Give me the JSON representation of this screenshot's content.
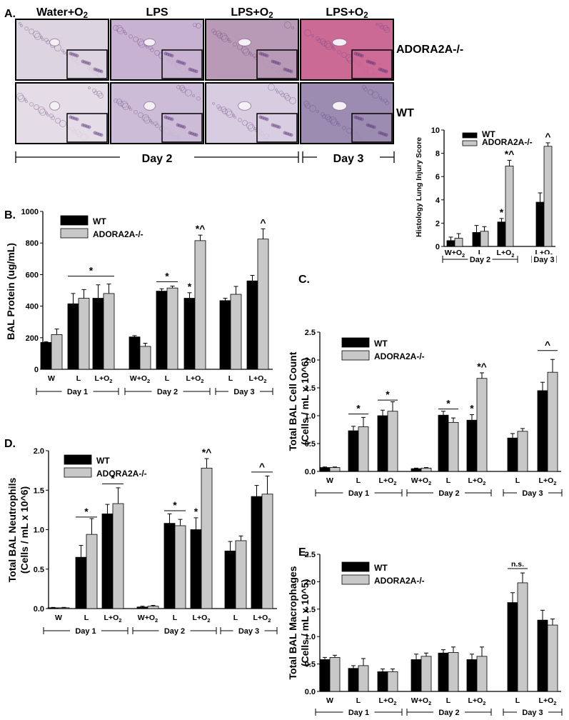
{
  "panel_a": {
    "label": "A.",
    "column_titles": [
      "Water+O2",
      "LPS",
      "LPS+O2",
      "LPS+O2"
    ],
    "row_labels": [
      "ADORA2A-/-",
      "WT"
    ],
    "day_labels": [
      "Day 2",
      "Day 3"
    ],
    "image_tones": [
      [
        "#dcd4e0",
        "#c8b2d2",
        "#b99ab6",
        "#cc6a96"
      ],
      [
        "#e4dce6",
        "#cdbcd8",
        "#d8cce0",
        "#9c8cb2"
      ]
    ]
  },
  "chart_data": [
    {
      "id": "inset",
      "type": "bar",
      "label": "",
      "ylabel": "Histology Lung Injury Score",
      "ylim": [
        0,
        10
      ],
      "yticks": [
        0,
        2,
        4,
        6,
        8,
        10
      ],
      "categories": [
        "W+O2",
        "L",
        "L+O2",
        "L+O2"
      ],
      "groups": [
        {
          "label": "Day 2",
          "from": 0,
          "to": 2
        },
        {
          "label": "Day 3",
          "from": 3,
          "to": 3
        }
      ],
      "legend": [
        "WT",
        "ADORA2A-/-"
      ],
      "series": [
        {
          "name": "WT",
          "values": [
            0.5,
            1.2,
            2.1,
            3.8
          ],
          "errors": [
            0.3,
            0.6,
            0.3,
            0.8
          ]
        },
        {
          "name": "ADORA2A-/-",
          "values": [
            0.7,
            1.3,
            6.9,
            8.6
          ],
          "errors": [
            0.4,
            0.4,
            0.5,
            0.3
          ]
        }
      ],
      "marks": [
        {
          "text": "*",
          "cat": 2,
          "series": 0
        },
        {
          "text": "*^",
          "cat": 2,
          "series": 1
        },
        {
          "text": "^",
          "cat": 3,
          "series": 1
        }
      ],
      "lines": []
    },
    {
      "id": "B",
      "type": "bar",
      "label": "B.",
      "ylabel": "BAL Protein (ug/mL)",
      "ylim": [
        0,
        1000
      ],
      "yticks": [
        0,
        200,
        400,
        600,
        800,
        1000
      ],
      "categories": [
        "W",
        "L",
        "L+O2",
        "W+O2",
        "L",
        "L+O2",
        "L",
        "L+O2"
      ],
      "groups": [
        {
          "label": "Day 1",
          "from": 0,
          "to": 2
        },
        {
          "label": "Day 2",
          "from": 3,
          "to": 5
        },
        {
          "label": "Day 3",
          "from": 6,
          "to": 7
        }
      ],
      "legend": [
        "WT",
        "ADORA2A-/-"
      ],
      "series": [
        {
          "name": "WT",
          "values": [
            170,
            415,
            450,
            205,
            495,
            450,
            435,
            560
          ],
          "errors": [
            5,
            65,
            85,
            8,
            15,
            35,
            15,
            35
          ]
        },
        {
          "name": "ADORA2A-/-",
          "values": [
            220,
            450,
            480,
            145,
            515,
            815,
            475,
            825
          ],
          "errors": [
            35,
            55,
            60,
            20,
            12,
            35,
            50,
            65
          ]
        }
      ],
      "marks": [
        {
          "text": "*",
          "cat": 5,
          "series": 0
        },
        {
          "text": "*^",
          "cat": 5,
          "series": 1
        },
        {
          "text": "^",
          "cat": 7,
          "series": 1
        }
      ],
      "lines": [
        {
          "from": 1,
          "to": 2,
          "y": 590,
          "text": "*"
        },
        {
          "from": 4,
          "to": 4,
          "y": 555,
          "text": "*"
        }
      ]
    },
    {
      "id": "C",
      "type": "bar",
      "label": "C.",
      "ylabel": "Total BAL Cell Count (Cells / mL x 10^6)",
      "ylim": [
        0,
        2.5
      ],
      "yticks": [
        0.0,
        0.5,
        1.0,
        1.5,
        2.0,
        2.5
      ],
      "categories": [
        "W",
        "L",
        "L+O2",
        "W+O2",
        "L",
        "L+O2",
        "L",
        "L+O2"
      ],
      "groups": [
        {
          "label": "Day 1",
          "from": 0,
          "to": 2
        },
        {
          "label": "Day 2",
          "from": 3,
          "to": 5
        },
        {
          "label": "Day 3",
          "from": 6,
          "to": 7
        }
      ],
      "legend": [
        "WT",
        "ADORA2A-/-"
      ],
      "series": [
        {
          "name": "WT",
          "values": [
            0.07,
            0.73,
            1.0,
            0.05,
            1.01,
            0.92,
            0.6,
            1.45
          ],
          "errors": [
            0.01,
            0.08,
            0.1,
            0.01,
            0.07,
            0.1,
            0.08,
            0.15
          ]
        },
        {
          "name": "ADORA2A-/-",
          "values": [
            0.07,
            0.8,
            1.08,
            0.06,
            0.88,
            1.67,
            0.72,
            1.78
          ],
          "errors": [
            0.01,
            0.17,
            0.17,
            0.01,
            0.08,
            0.1,
            0.05,
            0.23
          ]
        }
      ],
      "marks": [
        {
          "text": "*",
          "cat": 5,
          "series": 0
        },
        {
          "text": "*^",
          "cat": 5,
          "series": 1
        }
      ],
      "lines": [
        {
          "from": 1,
          "to": 1,
          "y": 1.03,
          "text": "*"
        },
        {
          "from": 2,
          "to": 2,
          "y": 1.28,
          "text": "*"
        },
        {
          "from": 4,
          "to": 4,
          "y": 1.12,
          "text": "*"
        },
        {
          "from": 7,
          "to": 7,
          "y": 2.17,
          "text": "^"
        }
      ]
    },
    {
      "id": "D",
      "type": "bar",
      "label": "D.",
      "ylabel": "Total BAL Neutrophils (Cells / mL x 10^6)",
      "ylim": [
        0,
        2.0
      ],
      "yticks": [
        0.0,
        0.5,
        1.0,
        1.5,
        2.0
      ],
      "categories": [
        "W",
        "L",
        "L+O2",
        "W+O2",
        "L",
        "L+O2",
        "L",
        "L+O2"
      ],
      "groups": [
        {
          "label": "Day 1",
          "from": 0,
          "to": 2
        },
        {
          "label": "Day 2",
          "from": 3,
          "to": 5
        },
        {
          "label": "Day 3",
          "from": 6,
          "to": 7
        }
      ],
      "legend": [
        "WT",
        "ADORA2A-/-"
      ],
      "series": [
        {
          "name": "WT",
          "values": [
            0.01,
            0.65,
            1.2,
            0.02,
            1.08,
            1.0,
            0.73,
            1.42
          ],
          "errors": [
            0.005,
            0.15,
            0.12,
            0.01,
            0.12,
            0.15,
            0.12,
            0.14
          ]
        },
        {
          "name": "ADORA2A-/-",
          "values": [
            0.01,
            0.94,
            1.33,
            0.03,
            1.05,
            1.78,
            0.86,
            1.45
          ],
          "errors": [
            0.005,
            0.2,
            0.2,
            0.01,
            0.08,
            0.12,
            0.06,
            0.23
          ]
        }
      ],
      "marks": [
        {
          "text": "*",
          "cat": 5,
          "series": 0
        },
        {
          "text": "*^",
          "cat": 5,
          "series": 1
        }
      ],
      "lines": [
        {
          "from": 1,
          "to": 1,
          "y": 1.16,
          "text": "*"
        },
        {
          "from": 2,
          "to": 2,
          "y": 1.58,
          "text": "*"
        },
        {
          "from": 4,
          "to": 4,
          "y": 1.24,
          "text": "*"
        },
        {
          "from": 7,
          "to": 7,
          "y": 1.73,
          "text": "^"
        }
      ]
    },
    {
      "id": "E",
      "type": "bar",
      "label": "E.",
      "ylabel": "Total BAL Macrophages (Cells / mL x 10^5)",
      "ylim": [
        0,
        2.5
      ],
      "yticks": [
        0.0,
        0.5,
        1.0,
        1.5,
        2.0,
        2.5
      ],
      "categories": [
        "W",
        "L",
        "L+O2",
        "W+O2",
        "L",
        "L+O2",
        "L",
        "L+O2"
      ],
      "groups": [
        {
          "label": "Day 1",
          "from": 0,
          "to": 2
        },
        {
          "label": "Day 2",
          "from": 3,
          "to": 5
        },
        {
          "label": "Day 3",
          "from": 6,
          "to": 7
        }
      ],
      "legend": [
        "WT",
        "ADORA2A-/-"
      ],
      "series": [
        {
          "name": "WT",
          "values": [
            0.58,
            0.42,
            0.36,
            0.58,
            0.7,
            0.58,
            1.62,
            1.3
          ],
          "errors": [
            0.04,
            0.05,
            0.05,
            0.1,
            0.06,
            0.1,
            0.18,
            0.18
          ]
        },
        {
          "name": "ADORA2A-/-",
          "values": [
            0.62,
            0.47,
            0.36,
            0.64,
            0.71,
            0.64,
            1.98,
            1.21
          ],
          "errors": [
            0.04,
            0.13,
            0.05,
            0.06,
            0.1,
            0.17,
            0.18,
            0.11
          ]
        }
      ],
      "marks": [],
      "lines": [
        {
          "from": 6,
          "to": 6,
          "y": 2.24,
          "text": "n.s."
        }
      ]
    }
  ]
}
